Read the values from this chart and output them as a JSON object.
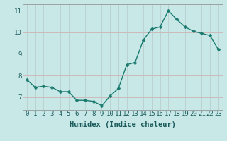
{
  "x": [
    0,
    1,
    2,
    3,
    4,
    5,
    6,
    7,
    8,
    9,
    10,
    11,
    12,
    13,
    14,
    15,
    16,
    17,
    18,
    19,
    20,
    21,
    22,
    23
  ],
  "y": [
    7.8,
    7.45,
    7.5,
    7.45,
    7.25,
    7.25,
    6.85,
    6.85,
    6.8,
    6.6,
    7.05,
    7.4,
    8.5,
    8.6,
    9.65,
    10.15,
    10.25,
    11.0,
    10.6,
    10.25,
    10.05,
    9.95,
    9.85,
    9.2
  ],
  "line_color": "#1a7a6e",
  "marker_color": "#1a7a6e",
  "bg_color": "#c8e8e8",
  "plot_bg_color": "#c8e8e8",
  "grid_color": "#b8c8c8",
  "grid_color_major": "#d0a8a8",
  "xlabel": "Humidex (Indice chaleur)",
  "xlim": [
    -0.5,
    23.5
  ],
  "ylim": [
    6.4,
    11.3
  ],
  "yticks": [
    7,
    8,
    9,
    10,
    11
  ],
  "xticks": [
    0,
    1,
    2,
    3,
    4,
    5,
    6,
    7,
    8,
    9,
    10,
    11,
    12,
    13,
    14,
    15,
    16,
    17,
    18,
    19,
    20,
    21,
    22,
    23
  ],
  "xtick_labels": [
    "0",
    "1",
    "2",
    "3",
    "4",
    "5",
    "6",
    "7",
    "8",
    "9",
    "10",
    "11",
    "12",
    "13",
    "14",
    "15",
    "16",
    "17",
    "18",
    "19",
    "20",
    "21",
    "22",
    "23"
  ],
  "font_size_ticks": 6.5,
  "font_size_xlabel": 7.5,
  "line_width": 1.0,
  "marker_size": 2.5
}
